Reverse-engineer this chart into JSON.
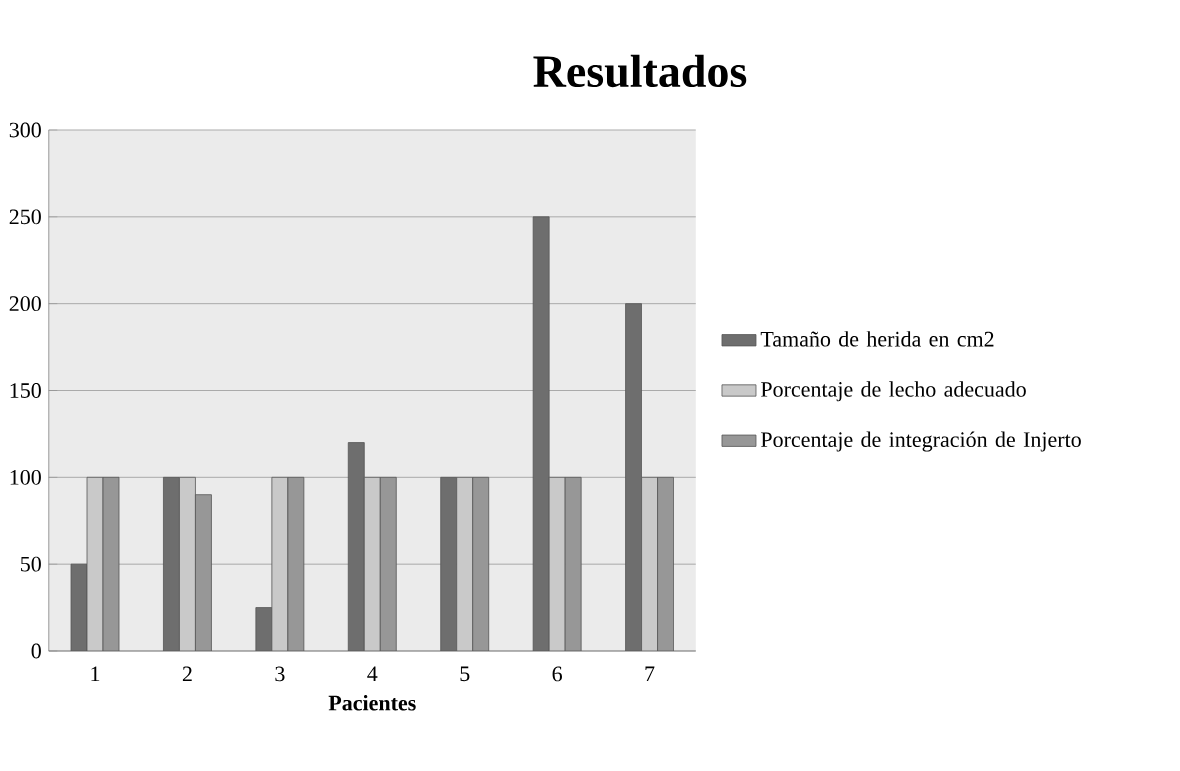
{
  "chart_data": {
    "type": "bar",
    "title": "Resultados",
    "xlabel": "Pacientes",
    "categories": [
      "1",
      "2",
      "3",
      "4",
      "5",
      "6",
      "7"
    ],
    "series": [
      {
        "name": "Tamaño de herida en cm2",
        "color": "#6e6e6e",
        "values": [
          50,
          100,
          25,
          120,
          100,
          250,
          200
        ]
      },
      {
        "name": "Porcentaje de lecho adecuado",
        "color": "#c9c9c9",
        "values": [
          100,
          100,
          100,
          100,
          100,
          100,
          100
        ]
      },
      {
        "name": "Porcentaje de integración de Injerto",
        "color": "#979797",
        "values": [
          100,
          90,
          100,
          100,
          100,
          100,
          100
        ]
      }
    ],
    "ylim": [
      0,
      300
    ],
    "yticks": [
      0,
      50,
      100,
      150,
      200,
      250,
      300
    ],
    "grid": "y",
    "legend": "right"
  }
}
